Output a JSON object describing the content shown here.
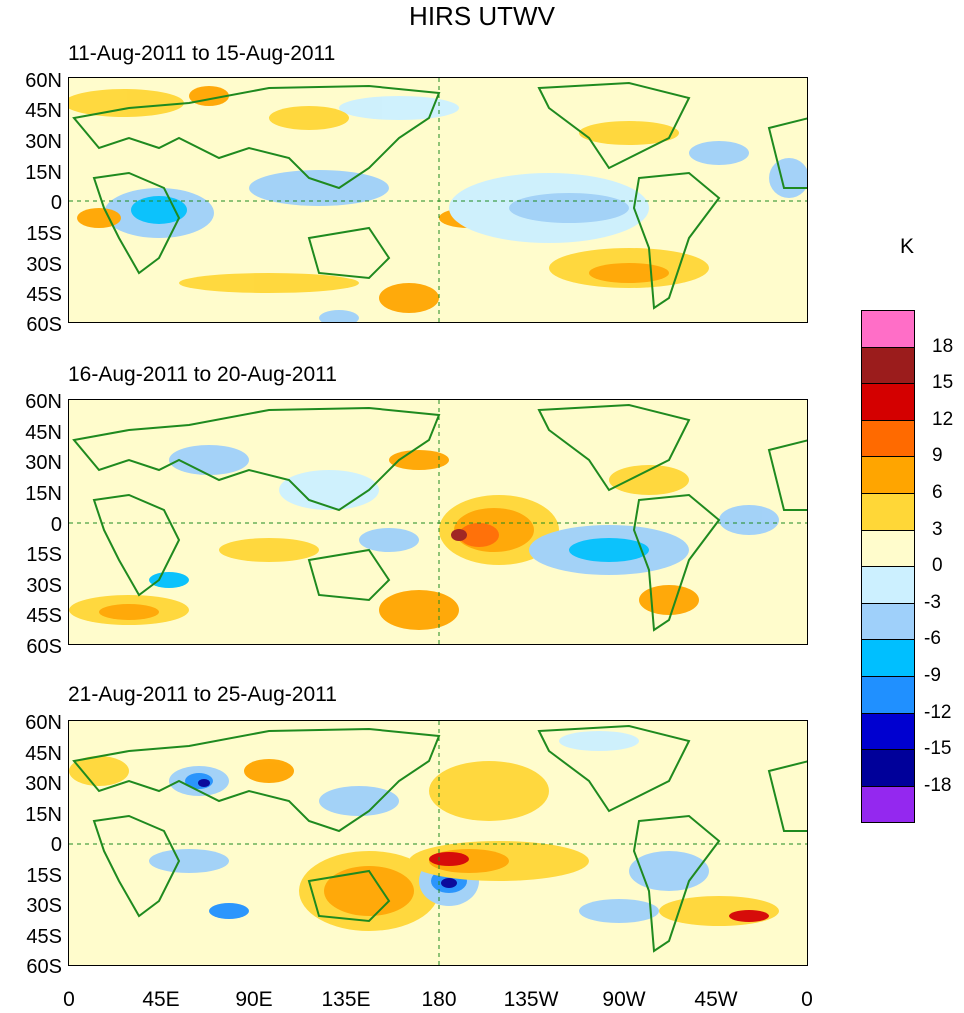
{
  "title": "HIRS UTWV",
  "panels": [
    {
      "title": "11-Aug-2011 to 15-Aug-2011"
    },
    {
      "title": "16-Aug-2011 to 20-Aug-2011"
    },
    {
      "title": "21-Aug-2011 to 25-Aug-2011"
    }
  ],
  "lat_labels": [
    "60N",
    "45N",
    "30N",
    "15N",
    "0",
    "15S",
    "30S",
    "45S",
    "60S"
  ],
  "lon_labels": [
    "0",
    "45E",
    "90E",
    "135E",
    "180",
    "135W",
    "90W",
    "45W",
    "0"
  ],
  "colorbar": {
    "unit": "K",
    "labels": [
      "18",
      "15",
      "12",
      "9",
      "6",
      "3",
      "0",
      "-3",
      "-6",
      "-9",
      "-12",
      "-15",
      "-18"
    ],
    "colors": [
      "#ff6ec7",
      "#9b1c1c",
      "#d40000",
      "#ff6a00",
      "#ffa500",
      "#ffd737",
      "#fffccc",
      "#ccf0ff",
      "#9fd0fa",
      "#00bfff",
      "#2090ff",
      "#0000d0",
      "#00009a",
      "#9428ef"
    ]
  }
}
